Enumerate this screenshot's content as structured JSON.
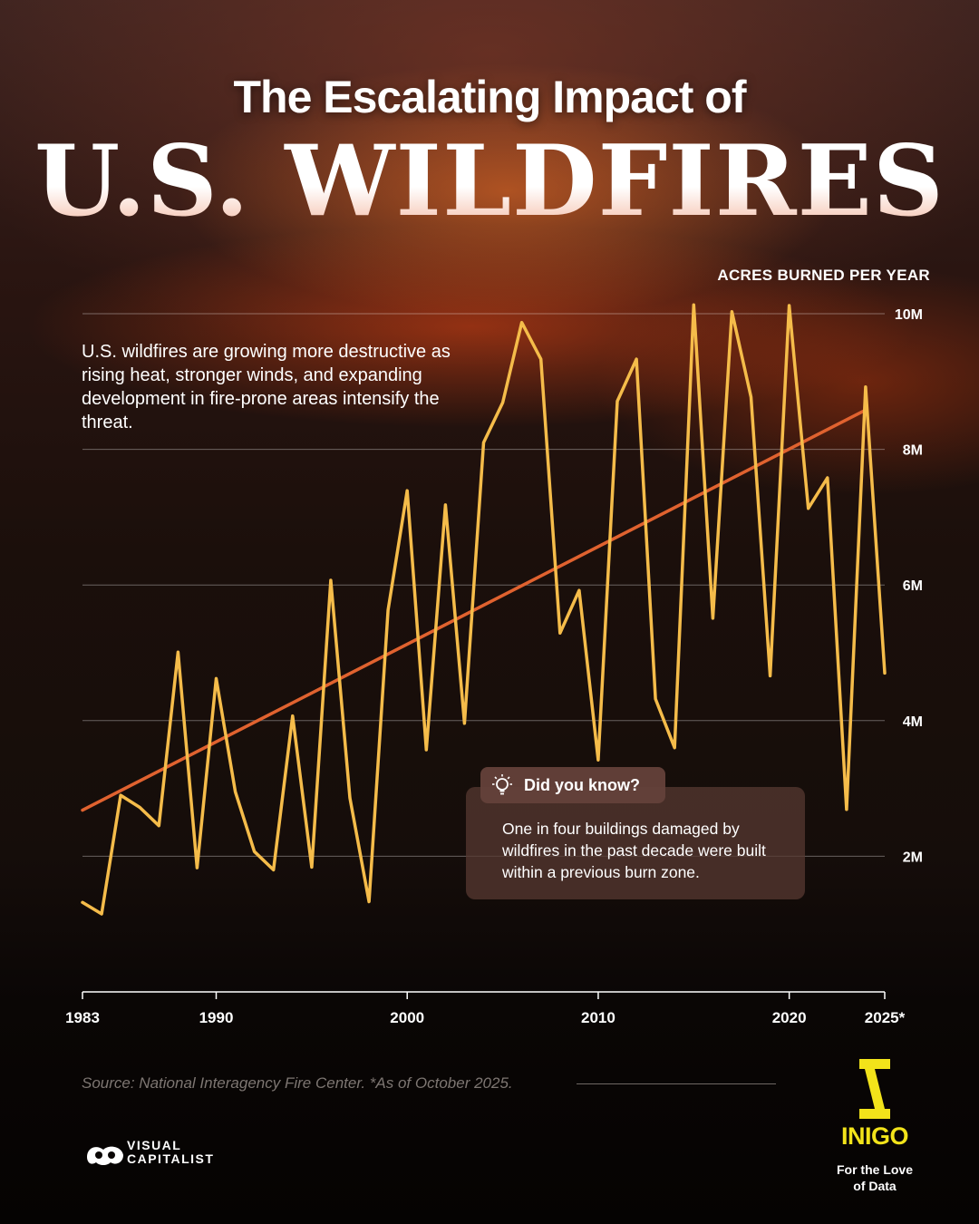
{
  "header": {
    "title_line1": "The Escalating Impact of",
    "title_line2": "U.S. WILDFIRES"
  },
  "intro_text": "U.S. wildfires are growing more destructive as rising heat, stronger winds, and expanding development in fire-prone areas intensify the threat.",
  "did_you_know": {
    "title": "Did you know?",
    "icon": "lightbulb-icon",
    "body": "One in four buildings damaged by wildfires in the past decade were built within a previous burn zone."
  },
  "source": "Source: National Interagency Fire Center. *As of October 2025.",
  "branding": {
    "visual_capitalist_line1": "VISUAL",
    "visual_capitalist_line2": "CAPITALIST",
    "inigo_name": "INIGO",
    "inigo_tagline_line1": "For the Love",
    "inigo_tagline_line2": "of Data"
  },
  "colors": {
    "series_line": "#f5bc4a",
    "trend_line": "#e0622f",
    "inigo_yellow": "#f2e31a",
    "background_dark": "#0a0605"
  },
  "chart_data": {
    "type": "line",
    "title": "",
    "ylabel": "ACRES BURNED PER YEAR",
    "xlabel": "",
    "x_tick_labels": [
      "1983",
      "1990",
      "2000",
      "2010",
      "2020",
      "2025*"
    ],
    "x_tick_values": [
      1983,
      1990,
      2000,
      2010,
      2020,
      2025
    ],
    "y_tick_labels": [
      "2M",
      "4M",
      "6M",
      "8M",
      "10M"
    ],
    "y_tick_values": [
      2000000,
      4000000,
      6000000,
      8000000,
      10000000
    ],
    "xlim": [
      1983,
      2025
    ],
    "ylim": [
      0,
      10500000
    ],
    "grid": "horizontal",
    "series": [
      {
        "values": [
          {
            "x": 1983,
            "y": 1320000
          },
          {
            "x": 1984,
            "y": 1150000
          },
          {
            "x": 1985,
            "y": 2900000
          },
          {
            "x": 1986,
            "y": 2720000
          },
          {
            "x": 1987,
            "y": 2450000
          },
          {
            "x": 1988,
            "y": 5010000
          },
          {
            "x": 1989,
            "y": 1830000
          },
          {
            "x": 1990,
            "y": 4620000
          },
          {
            "x": 1991,
            "y": 2950000
          },
          {
            "x": 1992,
            "y": 2070000
          },
          {
            "x": 1993,
            "y": 1800000
          },
          {
            "x": 1994,
            "y": 4070000
          },
          {
            "x": 1995,
            "y": 1840000
          },
          {
            "x": 1996,
            "y": 6070000
          },
          {
            "x": 1997,
            "y": 2860000
          },
          {
            "x": 1998,
            "y": 1330000
          },
          {
            "x": 1999,
            "y": 5630000
          },
          {
            "x": 2000,
            "y": 7390000
          },
          {
            "x": 2001,
            "y": 3570000
          },
          {
            "x": 2002,
            "y": 7180000
          },
          {
            "x": 2003,
            "y": 3960000
          },
          {
            "x": 2004,
            "y": 8100000
          },
          {
            "x": 2005,
            "y": 8690000
          },
          {
            "x": 2006,
            "y": 9870000
          },
          {
            "x": 2007,
            "y": 9330000
          },
          {
            "x": 2008,
            "y": 5290000
          },
          {
            "x": 2009,
            "y": 5920000
          },
          {
            "x": 2010,
            "y": 3420000
          },
          {
            "x": 2011,
            "y": 8710000
          },
          {
            "x": 2012,
            "y": 9330000
          },
          {
            "x": 2013,
            "y": 4320000
          },
          {
            "x": 2014,
            "y": 3600000
          },
          {
            "x": 2015,
            "y": 10130000
          },
          {
            "x": 2016,
            "y": 5510000
          },
          {
            "x": 2017,
            "y": 10030000
          },
          {
            "x": 2018,
            "y": 8770000
          },
          {
            "x": 2019,
            "y": 4660000
          },
          {
            "x": 2020,
            "y": 10120000
          },
          {
            "x": 2021,
            "y": 7130000
          },
          {
            "x": 2022,
            "y": 7580000
          },
          {
            "x": 2023,
            "y": 2690000
          },
          {
            "x": 2024,
            "y": 8920000
          },
          {
            "x": 2025,
            "y": 4700000
          }
        ]
      }
    ],
    "trend_line": {
      "start": {
        "x": 1983,
        "y": 2680000
      },
      "end": {
        "x": 2024,
        "y": 8580000
      }
    }
  }
}
